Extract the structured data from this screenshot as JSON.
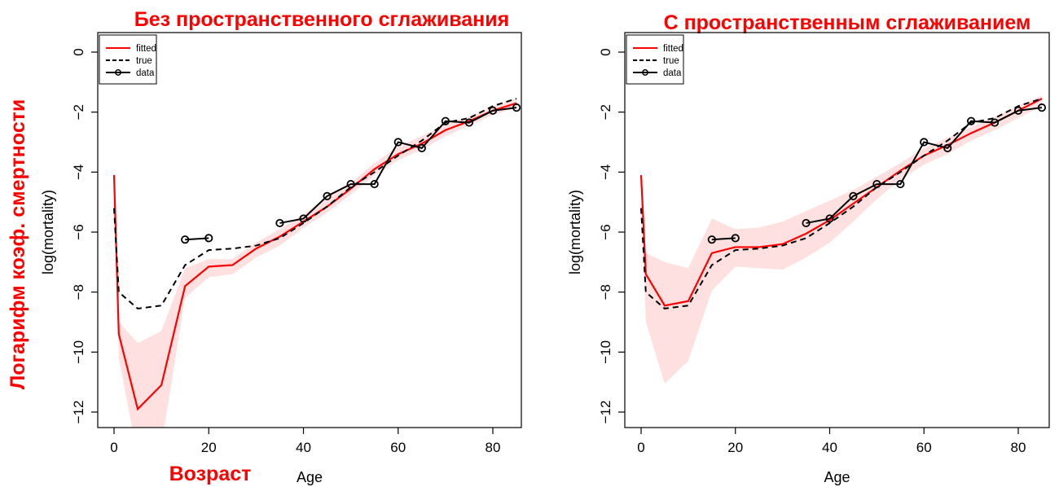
{
  "colors": {
    "accent": "#ff0000",
    "band": "#ffe0e0",
    "data": "#000000",
    "true": "#000000"
  },
  "annotations": {
    "ylabel_overlay": "Логарифм коэф. смертности",
    "xlabel_overlay": "Возраст"
  },
  "chart_data": [
    {
      "type": "line",
      "title": "Без пространственного сглаживания",
      "xlabel": "Age",
      "ylabel": "log(mortality)",
      "xlim": [
        0,
        85
      ],
      "ylim": [
        -12,
        0
      ],
      "xticks": [
        0,
        20,
        40,
        60,
        80
      ],
      "yticks": [
        0,
        -2,
        -4,
        -6,
        -8,
        -10,
        -12
      ],
      "grid": false,
      "legend_position": "top-left",
      "legend": [
        "fitted",
        "true",
        "data"
      ],
      "x": [
        0,
        1,
        5,
        10,
        15,
        20,
        25,
        30,
        35,
        40,
        45,
        50,
        55,
        60,
        65,
        70,
        75,
        80,
        85
      ],
      "series": [
        {
          "name": "fitted",
          "style": "solid-red",
          "values": [
            -4.1,
            -9.4,
            -11.9,
            -11.1,
            -7.8,
            -7.15,
            -7.1,
            -6.55,
            -6.15,
            -5.65,
            -5.15,
            -4.55,
            -3.9,
            -3.4,
            -3.05,
            -2.6,
            -2.3,
            -1.95,
            -1.7
          ]
        },
        {
          "name": "true",
          "style": "dashed-black",
          "values": [
            -5.2,
            -8.0,
            -8.55,
            -8.45,
            -7.1,
            -6.6,
            -6.55,
            -6.45,
            -6.2,
            -5.7,
            -5.15,
            -4.5,
            -4.0,
            -3.45,
            -2.95,
            -2.35,
            -2.2,
            -1.8,
            -1.55
          ]
        },
        {
          "name": "data",
          "style": "points-lines",
          "segments": [
            {
              "x": [
                15,
                20
              ],
              "y": [
                -6.25,
                -6.2
              ]
            },
            {
              "x": [
                35,
                40,
                45,
                50,
                55,
                60,
                65,
                70,
                75,
                80,
                85
              ],
              "y": [
                -5.7,
                -5.55,
                -4.8,
                -4.4,
                -4.4,
                -3.0,
                -3.2,
                -2.3,
                -2.35,
                -1.95,
                -1.85
              ]
            }
          ]
        }
      ],
      "band": {
        "upper": [
          -4.1,
          -9.0,
          -9.7,
          -9.3,
          -7.2,
          -6.9,
          -6.9,
          -6.35,
          -5.9,
          -5.4,
          -4.85,
          -4.35,
          -3.7,
          -3.15,
          -2.8,
          -2.4,
          -2.15,
          -1.8,
          -1.55
        ],
        "lower": [
          -4.1,
          -10.2,
          -13.5,
          -13.1,
          -8.2,
          -7.5,
          -7.4,
          -6.85,
          -6.45,
          -5.85,
          -5.35,
          -4.75,
          -4.1,
          -3.6,
          -3.25,
          -2.8,
          -2.45,
          -2.1,
          -1.85
        ]
      }
    },
    {
      "type": "line",
      "title": "С пространственным сглаживанием",
      "xlabel": "Age",
      "ylabel": "log(mortality)",
      "xlim": [
        0,
        85
      ],
      "ylim": [
        -12,
        0
      ],
      "xticks": [
        0,
        20,
        40,
        60,
        80
      ],
      "yticks": [
        0,
        -2,
        -4,
        -6,
        -8,
        -10,
        -12
      ],
      "grid": false,
      "legend_position": "top-left",
      "legend": [
        "fitted",
        "true",
        "data"
      ],
      "x": [
        0,
        1,
        5,
        10,
        15,
        20,
        25,
        30,
        35,
        40,
        45,
        50,
        55,
        60,
        65,
        70,
        75,
        80,
        85
      ],
      "series": [
        {
          "name": "fitted",
          "style": "solid-red",
          "values": [
            -4.1,
            -7.4,
            -8.45,
            -8.3,
            -6.7,
            -6.5,
            -6.5,
            -6.4,
            -6.05,
            -5.6,
            -5.05,
            -4.5,
            -3.95,
            -3.45,
            -3.1,
            -2.7,
            -2.35,
            -1.95,
            -1.55
          ]
        },
        {
          "name": "true",
          "style": "dashed-black",
          "values": [
            -5.2,
            -8.0,
            -8.55,
            -8.45,
            -7.1,
            -6.6,
            -6.55,
            -6.45,
            -6.2,
            -5.7,
            -5.15,
            -4.5,
            -4.0,
            -3.45,
            -2.95,
            -2.35,
            -2.2,
            -1.8,
            -1.55
          ]
        },
        {
          "name": "data",
          "style": "points-lines",
          "segments": [
            {
              "x": [
                15,
                20
              ],
              "y": [
                -6.25,
                -6.2
              ]
            },
            {
              "x": [
                35,
                40,
                45,
                50,
                55,
                60,
                65,
                70,
                75,
                80,
                85
              ],
              "y": [
                -5.7,
                -5.55,
                -4.8,
                -4.4,
                -4.4,
                -3.0,
                -3.2,
                -2.3,
                -2.35,
                -1.95,
                -1.85
              ]
            }
          ]
        }
      ],
      "band": {
        "upper": [
          -4.1,
          -6.7,
          -7.0,
          -7.2,
          -5.55,
          -5.9,
          -5.85,
          -5.65,
          -5.3,
          -4.95,
          -4.6,
          -4.15,
          -3.7,
          -3.2,
          -2.85,
          -2.5,
          -2.15,
          -1.8,
          -1.45
        ],
        "lower": [
          -4.1,
          -9.0,
          -11.05,
          -10.3,
          -7.95,
          -7.15,
          -7.2,
          -7.25,
          -6.85,
          -6.35,
          -5.65,
          -4.9,
          -4.25,
          -3.75,
          -3.4,
          -2.95,
          -2.6,
          -2.2,
          -1.8
        ]
      }
    }
  ]
}
